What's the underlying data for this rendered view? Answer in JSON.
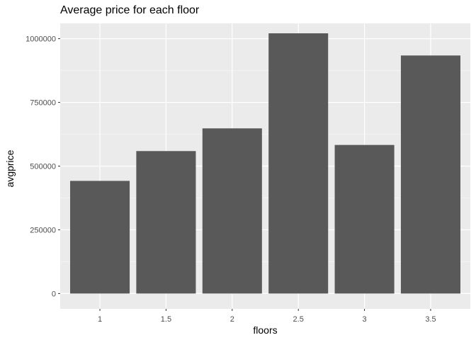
{
  "chart_data": {
    "type": "bar",
    "title": "Average price for each floor",
    "xlabel": "floors",
    "ylabel": "avgprice",
    "categories": [
      "1",
      "1.5",
      "2",
      "2.5",
      "3",
      "3.5"
    ],
    "values": [
      442000,
      559000,
      648000,
      1021000,
      583000,
      934000
    ],
    "ylim": [
      -60000,
      1060000
    ],
    "yticks": [
      0,
      250000,
      500000,
      750000,
      1000000
    ],
    "ytick_labels": [
      "0",
      "250000",
      "500000",
      "750000",
      "1000000"
    ],
    "grid": true,
    "legend": "none",
    "colors": {
      "bar": "#595959",
      "panel": "#ebebeb",
      "grid_major": "#ffffff",
      "grid_minor": "#f5f5f5",
      "tick_text": "#4d4d4d",
      "tick_mark": "#333333"
    }
  }
}
